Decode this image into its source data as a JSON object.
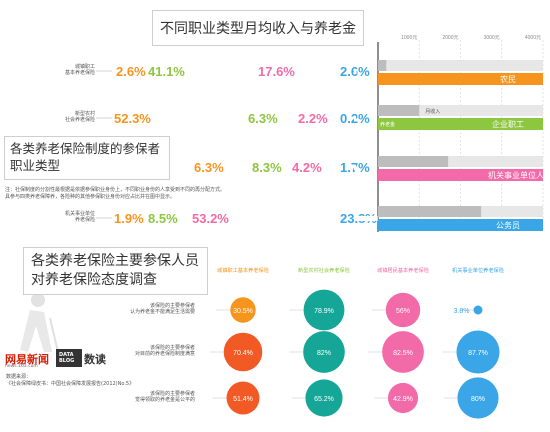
{
  "colors": {
    "urban_worker": "#f7941d",
    "new_rural": "#8dc63f",
    "urban_resident": "#f26ba8",
    "institution": "#3aa6e8",
    "teal": "#15a698",
    "orange_red": "#f15a24",
    "axis_gray": "#bdbdbd"
  },
  "chart_data": [
    {
      "type": "bar",
      "title": "不同职业类型月均收入与养老金",
      "subtitle": "各类养老保险制度的参保者职业类型",
      "note_lines": [
        "注：社保制度的分割性最根据是依据参保职业身份上，不同职业身份的人享受到不同的再分配方式。",
        "具参与四类养老保障养，各险种的其他参保职业身份对应占比并在图中显示。"
      ],
      "stacked_series": [
        {
          "label": "城镇职工\n基本养老保险",
          "segments": [
            2.6,
            41.1,
            17.6,
            2.6
          ],
          "texts": [
            "2.6%",
            "41.1%",
            "17.6%",
            "2.6%"
          ],
          "last_width": 2.6
        },
        {
          "label": "新型农村\n社会养老保险",
          "segments": [
            52.3,
            6.3,
            2.2,
            0.2
          ],
          "texts": [
            "52.3%",
            "6.3%",
            "2.2%",
            "0.2%"
          ],
          "last_width": 0.2
        },
        {
          "label": "城镇居民基本\n养老保险",
          "segments": [
            6.3,
            8.3,
            4.2,
            1.7
          ],
          "texts": [
            "6.3%",
            "8.3%",
            "4.2%",
            "1.7%"
          ],
          "last_width": 1.7
        },
        {
          "label": "机关事业单位\n养老保险",
          "segments": [
            1.9,
            8.5,
            53.2,
            23.8
          ],
          "texts": [
            "1.9%",
            "8.5%",
            "53.2%",
            "23.8%"
          ],
          "last_width": 23.8
        }
      ],
      "income_axis": {
        "ticks": [
          "1000元",
          "2000元",
          "3000元",
          "4000元"
        ],
        "max": 4000
      },
      "occupations": [
        {
          "name": "农民",
          "income": 1600,
          "pension": 200,
          "pension_label": "",
          "income_label": ""
        },
        {
          "name": "企业职工",
          "income": 2200,
          "pension": 1000,
          "pension_label": "养老金",
          "income_label": "月收入"
        },
        {
          "name": "机关事业单位人员",
          "income": 2600,
          "pension": 1700,
          "pension_label": "",
          "income_label": ""
        },
        {
          "name": "公务员",
          "income": 3100,
          "pension": 2500,
          "pension_label": "",
          "income_label": ""
        }
      ]
    },
    {
      "type": "scatter",
      "title": "各类养老保险主要参保人员对养老保险态度调查",
      "title_lines": [
        "各类养老保险主要参保人员",
        "对养老保险态度调查"
      ],
      "columns": [
        {
          "name": "城镇职工基本养老保险",
          "color_key": "urban_worker"
        },
        {
          "name": "新型农村社会养老保险",
          "color_key": "new_rural"
        },
        {
          "name": "城镇居民基本养老保险",
          "color_key": "urban_resident"
        },
        {
          "name": "机关事业单位养老保险",
          "color_key": "institution"
        }
      ],
      "rows": [
        {
          "label_lines": [
            "该保险的主要参保者",
            "认为养老金不能满足生活需要"
          ],
          "values": [
            30.5,
            78.9,
            56,
            3.8
          ],
          "texts": [
            "30.5%",
            "78.9%",
            "56%",
            "3.8%"
          ]
        },
        {
          "label_lines": [
            "该保险的主要参保者",
            "对目前的养老保险制度满意"
          ],
          "values": [
            70.4,
            82,
            82.5,
            87.7
          ],
          "texts": [
            "70.4%",
            "82%",
            "82.5%",
            "87.7%"
          ]
        },
        {
          "label_lines": [
            "该保险的主要参保者",
            "觉得领取的养老金是公平的"
          ],
          "values": [
            51.4,
            65.2,
            42.9,
            80
          ],
          "texts": [
            "51.4%",
            "65.2%",
            "42.9%",
            "80%"
          ]
        }
      ]
    }
  ],
  "logo": {
    "brand": "网易新闻",
    "brand_url": "news.163.com",
    "data_blog": "DATA\nBLOG",
    "shudu": "数读"
  },
  "source": {
    "heading": "数据来源：",
    "text": "《社会保障绿皮书：中国社会保障发展报告(2012)No.5》"
  }
}
